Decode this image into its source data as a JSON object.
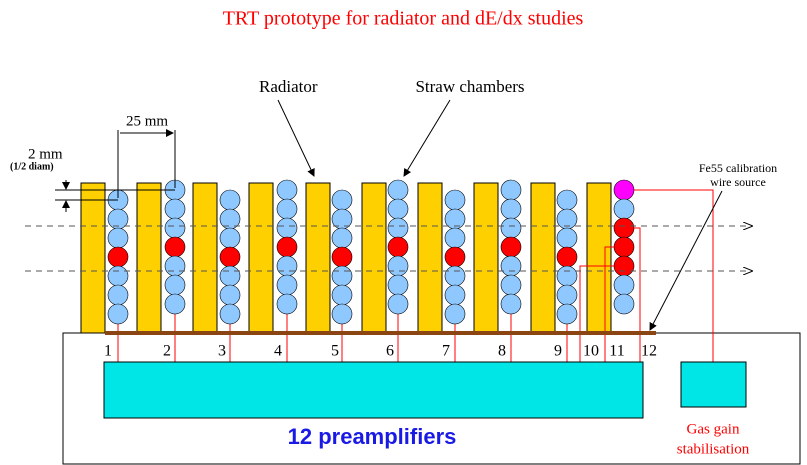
{
  "title": "TRT prototype for radiator and dE/dx studies",
  "labels": {
    "radiator": "Radiator",
    "straw_chambers": "Straw chambers",
    "pitch": "25 mm",
    "offset": "2 mm",
    "offset_note": "(1/2 diam)",
    "source_line1": "Fe55 calibration",
    "source_line2": "wire source",
    "preamps": "12 preamplifiers",
    "gas_line1": "Gas gain",
    "gas_line2": "stabilisation"
  },
  "channels": [
    "1",
    "2",
    "3",
    "4",
    "5",
    "6",
    "7",
    "8",
    "9",
    "10",
    "11",
    "12"
  ]
}
